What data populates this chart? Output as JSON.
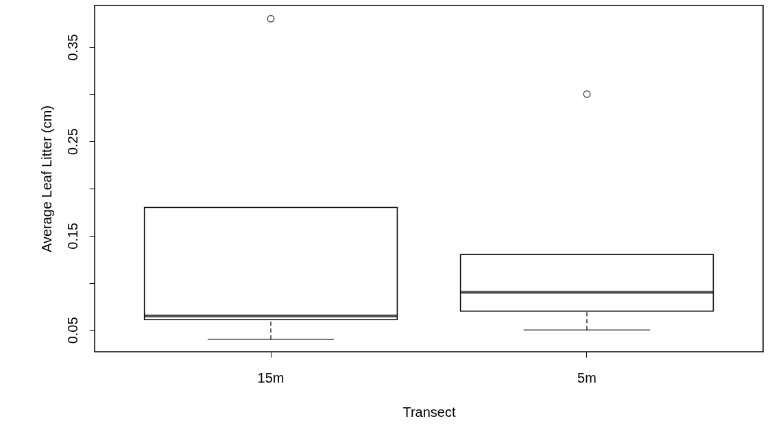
{
  "chart_data": {
    "type": "box",
    "xlabel": "Transect",
    "ylabel": "Average Leaf Litter (cm)",
    "categories": [
      "15m",
      "5m"
    ],
    "boxes": [
      {
        "low": 0.04,
        "q1": 0.061,
        "median": 0.065,
        "q3": 0.18,
        "high": 0.18,
        "outliers": [
          0.38
        ]
      },
      {
        "low": 0.05,
        "q1": 0.07,
        "median": 0.09,
        "q3": 0.13,
        "high": 0.13,
        "outliers": [
          0.3
        ]
      }
    ],
    "ylim": [
      0.027,
      0.394
    ],
    "yticks": [
      0.05,
      {
        "value": 0.1,
        "label": null
      },
      0.15,
      {
        "value": 0.2,
        "label": null
      },
      0.25,
      {
        "value": 0.3,
        "label": null
      },
      0.35
    ]
  }
}
